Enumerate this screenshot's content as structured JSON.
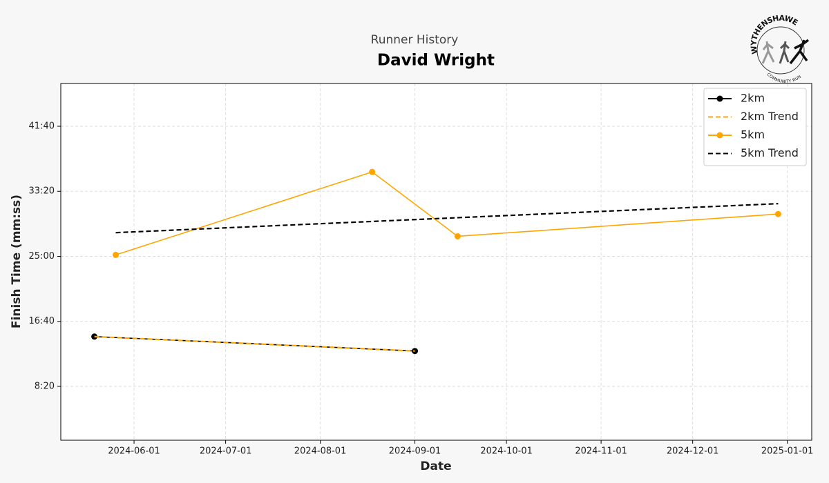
{
  "chart_data": {
    "type": "line",
    "title": "Runner History",
    "subtitle": "David Wright",
    "logo": {
      "top_text": "WYTHENSHAWE",
      "bottom_text": "COMMUNITY RUN"
    },
    "xlabel": "Date",
    "ylabel": "Finish Time (mm:ss)",
    "xlim": [
      "2024-05-08",
      "2025-01-09"
    ],
    "xticks": [
      "2024-06-01",
      "2024-07-01",
      "2024-08-01",
      "2024-09-01",
      "2024-10-01",
      "2024-11-01",
      "2024-12-01",
      "2025-01-01"
    ],
    "ylim": [
      86,
      2829
    ],
    "yticks": [
      {
        "value": 500,
        "label": "8:20"
      },
      {
        "value": 1000,
        "label": "16:40"
      },
      {
        "value": 1500,
        "label": "25:00"
      },
      {
        "value": 2000,
        "label": "33:20"
      },
      {
        "value": 2500,
        "label": "41:40"
      }
    ],
    "grid": true,
    "legend": "upper right",
    "series": [
      {
        "name": "2km",
        "color": "#000000",
        "dashed": false,
        "marker": true,
        "x": [
          "2024-05-19",
          "2024-09-01"
        ],
        "values": [
          883,
          772
        ]
      },
      {
        "name": "2km Trend",
        "color": "#ffa500",
        "dashed": true,
        "marker": false,
        "x": [
          "2024-05-19",
          "2024-09-01"
        ],
        "values": [
          883,
          772
        ]
      },
      {
        "name": "5km",
        "color": "#ffa500",
        "dashed": false,
        "marker": true,
        "x": [
          "2024-05-26",
          "2024-08-18",
          "2024-09-15",
          "2024-12-29"
        ],
        "values": [
          1511,
          2149,
          1654,
          1825
        ]
      },
      {
        "name": "5km Trend",
        "color": "#000000",
        "dashed": true,
        "marker": false,
        "x": [
          "2024-05-26",
          "2024-12-29"
        ],
        "values": [
          1682,
          1905
        ]
      }
    ]
  }
}
